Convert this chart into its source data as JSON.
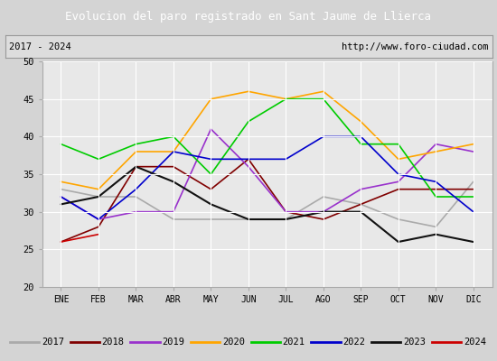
{
  "title": "Evolucion del paro registrado en Sant Jaume de Llierca",
  "subtitle_left": "2017 - 2024",
  "subtitle_right": "http://www.foro-ciudad.com",
  "title_bg": "#4472c4",
  "title_color": "white",
  "months": [
    "ENE",
    "FEB",
    "MAR",
    "ABR",
    "MAY",
    "JUN",
    "JUL",
    "AGO",
    "SEP",
    "OCT",
    "NOV",
    "DIC"
  ],
  "ylim": [
    20,
    50
  ],
  "yticks": [
    20,
    25,
    30,
    35,
    40,
    45,
    50
  ],
  "series": {
    "2017": {
      "color": "#aaaaaa",
      "linewidth": 1.2,
      "data": [
        33,
        32,
        32,
        29,
        29,
        29,
        29,
        32,
        31,
        29,
        28,
        34
      ]
    },
    "2018": {
      "color": "#800000",
      "linewidth": 1.2,
      "data": [
        26,
        28,
        36,
        36,
        33,
        37,
        30,
        29,
        31,
        33,
        33,
        33
      ]
    },
    "2019": {
      "color": "#9932CC",
      "linewidth": 1.2,
      "data": [
        32,
        29,
        30,
        30,
        41,
        36,
        30,
        30,
        33,
        34,
        39,
        38
      ]
    },
    "2020": {
      "color": "#FFA500",
      "linewidth": 1.2,
      "data": [
        34,
        33,
        38,
        38,
        45,
        46,
        45,
        46,
        42,
        37,
        38,
        39
      ]
    },
    "2021": {
      "color": "#00cc00",
      "linewidth": 1.2,
      "data": [
        39,
        37,
        39,
        40,
        35,
        42,
        45,
        45,
        39,
        39,
        32,
        32
      ]
    },
    "2022": {
      "color": "#0000cc",
      "linewidth": 1.2,
      "data": [
        32,
        29,
        33,
        38,
        37,
        37,
        37,
        40,
        40,
        35,
        34,
        30
      ]
    },
    "2023": {
      "color": "#111111",
      "linewidth": 1.5,
      "data": [
        31,
        32,
        36,
        34,
        31,
        29,
        29,
        30,
        30,
        26,
        27,
        26
      ]
    },
    "2024": {
      "color": "#cc0000",
      "linewidth": 1.2,
      "data": [
        26,
        27,
        null,
        null,
        null,
        null,
        null,
        null,
        null,
        null,
        null,
        null
      ]
    }
  },
  "legend_years": [
    "2017",
    "2018",
    "2019",
    "2020",
    "2021",
    "2022",
    "2023",
    "2024"
  ],
  "legend_colors": [
    "#aaaaaa",
    "#800000",
    "#9932CC",
    "#FFA500",
    "#00cc00",
    "#0000cc",
    "#111111",
    "#cc0000"
  ],
  "bg_color": "#d4d4d4",
  "plot_bg": "#e8e8e8",
  "grid_color": "white"
}
